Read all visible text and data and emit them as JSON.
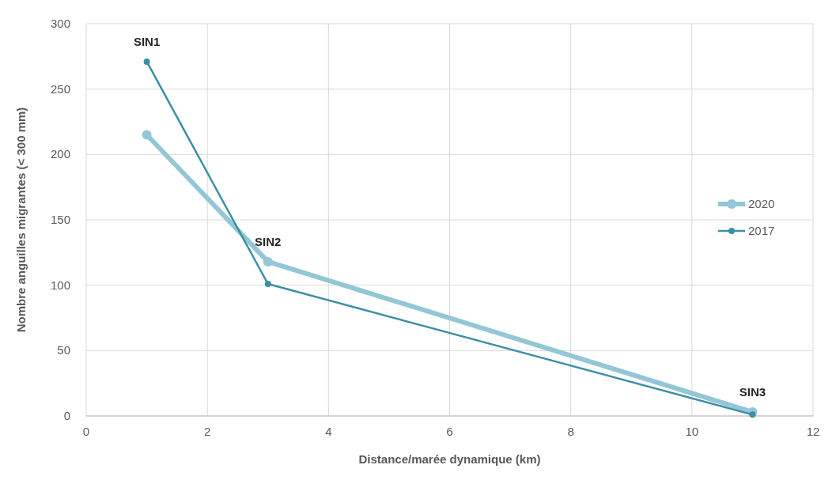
{
  "chart_data": {
    "type": "line",
    "xlabel": "Distance/marée dynamique (km)",
    "ylabel": "Nombre anguilles migrantes (< 300 mm)",
    "x": [
      1,
      3,
      11
    ],
    "series": [
      {
        "name": "2020",
        "color": "#93c6d6",
        "values": [
          215,
          118,
          3
        ]
      },
      {
        "name": "2017",
        "color": "#3b8fa5",
        "values": [
          271,
          101,
          1
        ]
      }
    ],
    "xlim": [
      0,
      12
    ],
    "xticks": [
      0,
      2,
      4,
      6,
      8,
      10,
      12
    ],
    "ylim": [
      0,
      300
    ],
    "yticks": [
      0,
      50,
      100,
      150,
      200,
      250,
      300
    ],
    "grid": true,
    "legend": "right",
    "marker": "circle",
    "annotations": [
      {
        "text": "SIN1",
        "x": 1,
        "y": 271
      },
      {
        "text": "SIN2",
        "x": 3,
        "y": 118
      },
      {
        "text": "SIN3",
        "x": 11,
        "y": 3
      }
    ]
  }
}
